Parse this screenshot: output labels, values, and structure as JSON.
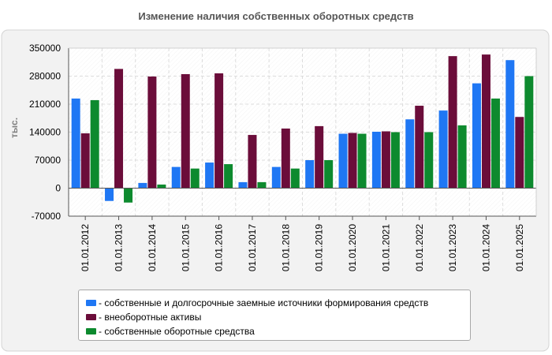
{
  "chart_data": {
    "type": "bar",
    "title": "Изменение наличия собственных оборотных средств",
    "ylabel": "тыс.",
    "xlabel": "",
    "ylim": [
      -70000,
      350000
    ],
    "yticks": [
      -70000,
      0,
      70000,
      140000,
      210000,
      280000,
      350000
    ],
    "categories": [
      "01.01.2012",
      "01.01.2013",
      "01.01.2014",
      "01.01.2015",
      "01.01.2016",
      "01.01.2017",
      "01.01.2018",
      "01.01.2019",
      "01.01.2020",
      "01.01.2021",
      "01.01.2022",
      "01.01.2023",
      "01.01.2024",
      "01.01.2025"
    ],
    "series": [
      {
        "name": "собственные и долгосрочные заемные источники формирования средств",
        "color": "#1f77f4",
        "values": [
          224000,
          -32000,
          13000,
          53000,
          64000,
          15000,
          53000,
          70000,
          136000,
          141000,
          172000,
          194000,
          262000,
          320000
        ]
      },
      {
        "name": "внеоборотные активы",
        "color": "#6b0d3a",
        "values": [
          137000,
          298000,
          279000,
          285000,
          287000,
          133000,
          149000,
          155000,
          138000,
          142000,
          206000,
          330000,
          334000,
          178000
        ]
      },
      {
        "name": "собственные оборотные средства",
        "color": "#0d8a2e",
        "values": [
          220000,
          -36000,
          9000,
          49000,
          60000,
          15000,
          49000,
          70000,
          136000,
          140000,
          140000,
          157000,
          224000,
          280000
        ]
      }
    ],
    "legend_position": "bottom",
    "grid": true
  }
}
